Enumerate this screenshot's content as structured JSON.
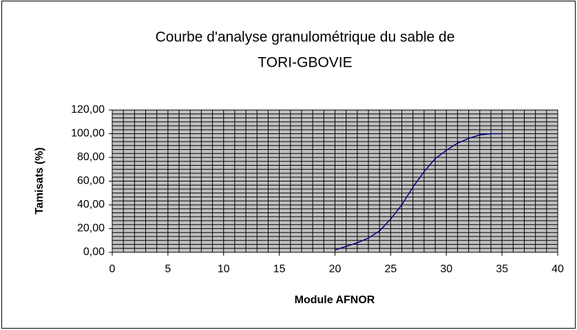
{
  "chart_data": {
    "type": "line",
    "title": [
      "Courbe d'analyse granulométrique du sable de",
      "TORI-GBOVIE"
    ],
    "x_label": "Module AFNOR",
    "y_label": "Tamisats (%)",
    "x": [
      20,
      21,
      22,
      23,
      24,
      25,
      26,
      27,
      28,
      29,
      30,
      31,
      32,
      33,
      34,
      35
    ],
    "series": [
      {
        "color": "#000080",
        "values": [
          2,
          5,
          8,
          12,
          18,
          28,
          40,
          55,
          68,
          79,
          86,
          92,
          96,
          99,
          100,
          100
        ]
      }
    ],
    "xlim": [
      0,
      40
    ],
    "xticks": [
      0,
      5,
      10,
      15,
      20,
      25,
      30,
      35,
      40
    ],
    "ylim": [
      0,
      120
    ],
    "yticks": [
      {
        "value": 0,
        "label": "0,00"
      },
      {
        "value": 20,
        "label": "20,00"
      },
      {
        "value": 40,
        "label": "40,00"
      },
      {
        "value": 60,
        "label": "60,00"
      },
      {
        "value": 80,
        "label": "80,00"
      },
      {
        "value": 100,
        "label": "100,00"
      },
      {
        "value": 120,
        "label": "120,00"
      }
    ],
    "grid": true,
    "plot_background": "#c0c0c0"
  }
}
